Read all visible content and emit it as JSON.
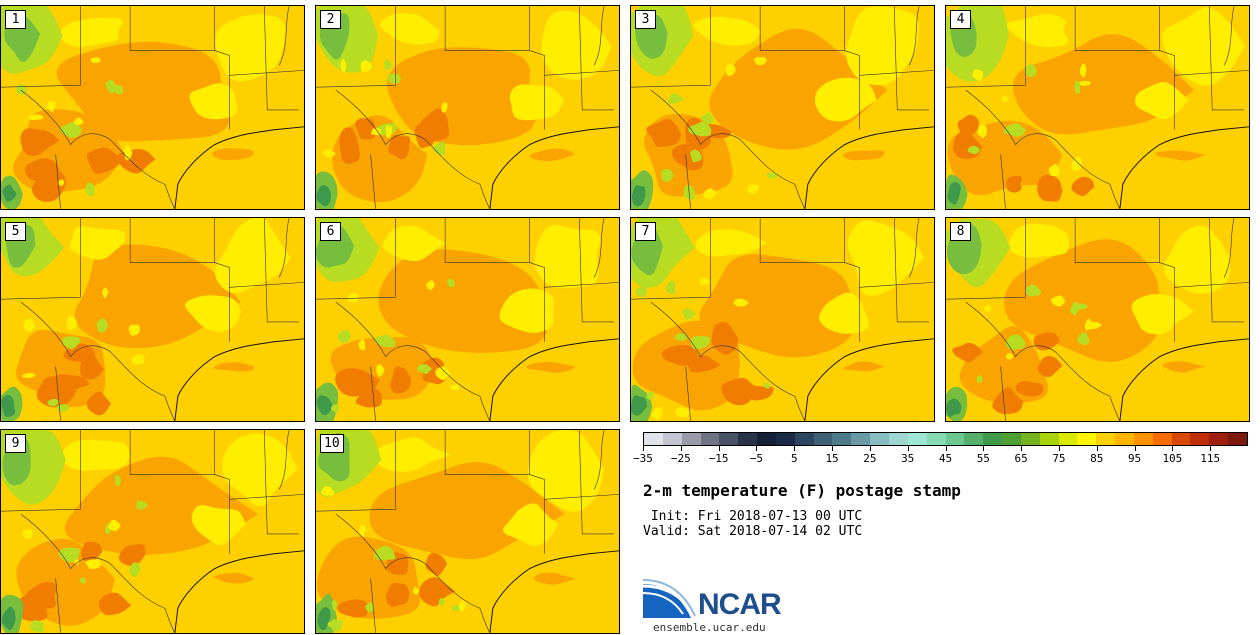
{
  "stamps": [
    {
      "label": "1"
    },
    {
      "label": "2"
    },
    {
      "label": "3"
    },
    {
      "label": "4"
    },
    {
      "label": "5"
    },
    {
      "label": "6"
    },
    {
      "label": "7"
    },
    {
      "label": "8"
    },
    {
      "label": "9"
    },
    {
      "label": "10"
    }
  ],
  "colorbar": {
    "min": -35,
    "max": 120,
    "step": 5,
    "tick_labels": [
      "-35",
      "-25",
      "-15",
      "-5",
      "5",
      "15",
      "25",
      "35",
      "45",
      "55",
      "65",
      "75",
      "85",
      "95",
      "105",
      "115"
    ],
    "colors": [
      "#e2e4ec",
      "#c2c5cf",
      "#999ca8",
      "#6f7585",
      "#4a5266",
      "#2b3348",
      "#142036",
      "#1b2a44",
      "#2c4660",
      "#3d6075",
      "#4f7a8a",
      "#6a9aa6",
      "#87bcc1",
      "#9fd6d2",
      "#9ee6d6",
      "#86dab4",
      "#6cc88e",
      "#56b06c",
      "#3f9a4a",
      "#4fa034",
      "#74b21f",
      "#a8d20c",
      "#d9ea00",
      "#fff500",
      "#ffd100",
      "#ffb400",
      "#ff9300",
      "#f56d00",
      "#d84800",
      "#c02e08",
      "#9f1e0c",
      "#7d1a10"
    ]
  },
  "title": "2-m temperature (F) postage stamp",
  "init": " Init: Fri 2018-07-13 00 UTC",
  "valid": "Valid: Sat 2018-07-14 02 UTC",
  "logo": {
    "text": "NCAR",
    "url": "ensemble.ucar.edu",
    "brand_color": "#1f4e8c"
  },
  "map_colors": {
    "hot": "#f9a400",
    "warm": "#ffd000",
    "mild": "#ffee00",
    "cool": "#b7dc22",
    "cooler": "#78be3e",
    "coolest": "#3e9a4a",
    "hottest": "#f07c00"
  }
}
